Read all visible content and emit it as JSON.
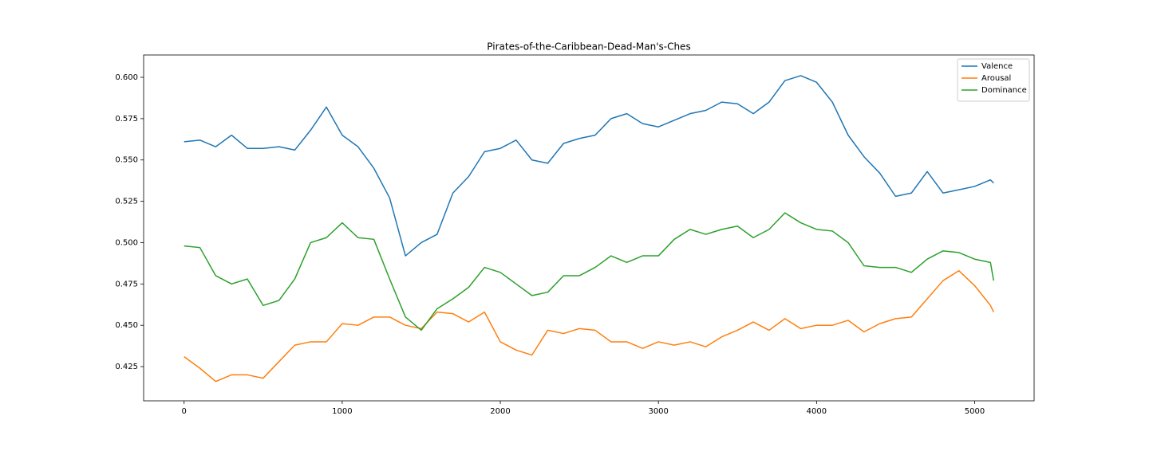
{
  "chart_data": {
    "type": "line",
    "title": "Pirates-of-the-Caribbean-Dead-Man's-Ches",
    "x": [
      0,
      100,
      200,
      300,
      400,
      500,
      600,
      700,
      800,
      900,
      1000,
      1100,
      1200,
      1300,
      1400,
      1500,
      1600,
      1700,
      1800,
      1900,
      2000,
      2100,
      2200,
      2300,
      2400,
      2500,
      2600,
      2700,
      2800,
      2900,
      3000,
      3100,
      3200,
      3300,
      3400,
      3500,
      3600,
      3700,
      3800,
      3900,
      4000,
      4100,
      4200,
      4300,
      4400,
      4500,
      4600,
      4700,
      4800,
      4900,
      5000,
      5100,
      5120
    ],
    "series": [
      {
        "name": "Valence",
        "color": "#1f77b4",
        "values": [
          0.561,
          0.562,
          0.558,
          0.565,
          0.557,
          0.557,
          0.558,
          0.556,
          0.568,
          0.582,
          0.565,
          0.558,
          0.545,
          0.527,
          0.492,
          0.5,
          0.505,
          0.53,
          0.54,
          0.555,
          0.557,
          0.562,
          0.55,
          0.548,
          0.56,
          0.563,
          0.565,
          0.575,
          0.578,
          0.572,
          0.57,
          0.574,
          0.578,
          0.58,
          0.585,
          0.584,
          0.578,
          0.585,
          0.598,
          0.601,
          0.597,
          0.585,
          0.565,
          0.552,
          0.542,
          0.528,
          0.53,
          0.543,
          0.53,
          0.532,
          0.534,
          0.538,
          0.536
        ]
      },
      {
        "name": "Arousal",
        "color": "#ff7f0e",
        "values": [
          0.431,
          0.424,
          0.416,
          0.42,
          0.42,
          0.418,
          0.428,
          0.438,
          0.44,
          0.44,
          0.451,
          0.45,
          0.455,
          0.455,
          0.45,
          0.448,
          0.458,
          0.457,
          0.452,
          0.458,
          0.44,
          0.435,
          0.432,
          0.447,
          0.445,
          0.448,
          0.447,
          0.44,
          0.44,
          0.436,
          0.44,
          0.438,
          0.44,
          0.437,
          0.443,
          0.447,
          0.452,
          0.447,
          0.454,
          0.448,
          0.45,
          0.45,
          0.453,
          0.446,
          0.451,
          0.454,
          0.455,
          0.466,
          0.477,
          0.483,
          0.474,
          0.462,
          0.458
        ]
      },
      {
        "name": "Dominance",
        "color": "#2ca02c",
        "values": [
          0.498,
          0.497,
          0.48,
          0.475,
          0.478,
          0.462,
          0.465,
          0.478,
          0.5,
          0.503,
          0.512,
          0.503,
          0.502,
          0.478,
          0.455,
          0.447,
          0.46,
          0.466,
          0.473,
          0.485,
          0.482,
          0.475,
          0.468,
          0.47,
          0.48,
          0.48,
          0.485,
          0.492,
          0.488,
          0.492,
          0.492,
          0.502,
          0.508,
          0.505,
          0.508,
          0.51,
          0.503,
          0.508,
          0.518,
          0.512,
          0.508,
          0.507,
          0.5,
          0.486,
          0.485,
          0.485,
          0.482,
          0.49,
          0.495,
          0.494,
          0.49,
          0.488,
          0.477
        ]
      }
    ],
    "xlim": [
      -256,
      5376
    ],
    "xticks": [
      0,
      1000,
      2000,
      3000,
      4000,
      5000
    ],
    "ylim": [
      0.4043,
      0.6135
    ],
    "yticks": [
      0.425,
      {
        "value": 0.45,
        "label": "0.450"
      },
      0.475,
      {
        "value": 0.5,
        "label": "0.500"
      },
      0.525,
      {
        "value": 0.55,
        "label": "0.550"
      },
      0.575,
      {
        "value": 0.6,
        "label": "0.600"
      }
    ],
    "grid": false,
    "legend": "upper right"
  }
}
